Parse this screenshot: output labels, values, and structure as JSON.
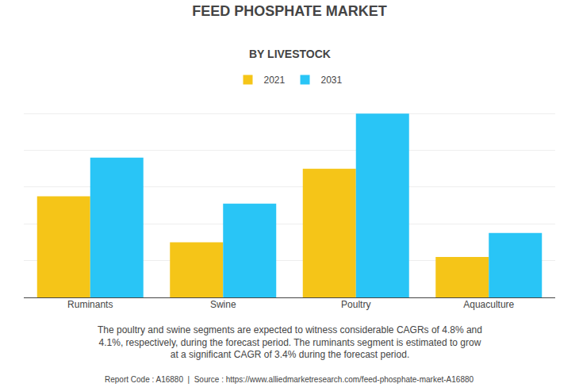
{
  "chart_data": {
    "type": "bar",
    "title": "FEED PHOSPHATE MARKET",
    "subtitle": "BY LIVESTOCK",
    "categories": [
      "Ruminants",
      "Swine",
      "Poultry",
      "Aquaculture"
    ],
    "series": [
      {
        "name": "2021",
        "color": "#F5C518",
        "values": [
          55,
          30,
          70,
          22
        ]
      },
      {
        "name": "2031",
        "color": "#29C5F6",
        "values": [
          76,
          51,
          100,
          35
        ]
      }
    ],
    "ylim": [
      0,
      110
    ],
    "yticks": [
      20,
      40,
      60,
      80,
      100
    ],
    "grid": true,
    "tick_labels": "x",
    "legend": "top",
    "annotations": [
      "The poultry and swine segments are expected to witness considerable CAGRs of 4.8% and\n4.1%, respectively, during the forecast period. The ruminants segment is estimated to grow\nat a significant CAGR of 3.4% during the forecast period.",
      "Report Code : A16880  |  Source : https://www.alliedmarketresearch.com/feed-phosphate-market-A16880"
    ]
  }
}
